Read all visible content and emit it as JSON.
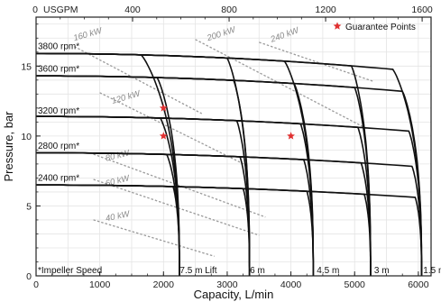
{
  "chart_data": {
    "type": "line",
    "title": "",
    "xlabel": "Capacity, L/min",
    "ylabel": "Pressure, bar",
    "x2label": "USGPM",
    "xlim": [
      0,
      6200
    ],
    "ylim": [
      0,
      18.5
    ],
    "x2lim": [
      0,
      1637
    ],
    "x_ticks": [
      0,
      1000,
      2000,
      3000,
      4000,
      5000,
      6000
    ],
    "y_ticks": [
      0,
      5,
      10,
      15
    ],
    "x2_ticks": [
      0,
      400,
      800,
      1200,
      1600
    ],
    "grid": true,
    "legend": {
      "position": "top-right",
      "label": "Guarantee Points",
      "color": "#e03030"
    },
    "note": "*Impeller Speed",
    "speed_labels": [
      {
        "label": "3800 rpm*",
        "y": 16.2
      },
      {
        "label": "3600 rpm*",
        "y": 14.6
      },
      {
        "label": "3200 rpm*",
        "y": 11.6
      },
      {
        "label": "2800 rpm*",
        "y": 9.1
      },
      {
        "label": "2400 rpm*",
        "y": 6.8
      }
    ],
    "lift_labels": [
      {
        "label": "7.5 m Lift",
        "x": 2200
      },
      {
        "label": "6 m",
        "x": 3300
      },
      {
        "label": "4.5 m",
        "x": 4350
      },
      {
        "label": "3 m",
        "x": 5250
      },
      {
        "label": "1.5 m",
        "x": 6020
      }
    ],
    "power_labels": [
      {
        "label": "160 kW",
        "x": 600,
        "y": 16.8,
        "angle": -16
      },
      {
        "label": "200 kW",
        "x": 2700,
        "y": 16.8,
        "angle": -18
      },
      {
        "label": "240 kW",
        "x": 3700,
        "y": 16.7,
        "angle": -20
      },
      {
        "label": "120 kW",
        "x": 1200,
        "y": 12.3,
        "angle": -16
      },
      {
        "label": "80 kW",
        "x": 1100,
        "y": 8.2,
        "angle": -14
      },
      {
        "label": "60 kW",
        "x": 1100,
        "y": 6.4,
        "angle": -14
      },
      {
        "label": "40 kW",
        "x": 1100,
        "y": 3.9,
        "angle": -12
      }
    ],
    "power_lines": [
      {
        "name": "160 kW",
        "points": [
          [
            600,
            16.4
          ],
          [
            2600,
            11.6
          ]
        ]
      },
      {
        "name": "200 kW",
        "points": [
          [
            2500,
            16.9
          ],
          [
            5200,
            10.5
          ]
        ]
      },
      {
        "name": "240 kW",
        "points": [
          [
            3500,
            16.7
          ],
          [
            5300,
            13.9
          ]
        ]
      },
      {
        "name": "120 kW",
        "points": [
          [
            1000,
            13.1
          ],
          [
            3300,
            7.9
          ]
        ]
      },
      {
        "name": "80 kW",
        "points": [
          [
            900,
            8.7
          ],
          [
            3600,
            4.2
          ]
        ]
      },
      {
        "name": "60 kW",
        "points": [
          [
            900,
            6.9
          ],
          [
            3500,
            2.9
          ]
        ]
      },
      {
        "name": "40 kW",
        "points": [
          [
            900,
            4.0
          ],
          [
            2800,
            1.4
          ]
        ]
      }
    ],
    "speeds": [
      {
        "rpm": 3800,
        "h0": 15.9,
        "drop": 1.3
      },
      {
        "rpm": 3600,
        "h0": 14.3,
        "drop": 1.2
      },
      {
        "rpm": 3200,
        "h0": 11.4,
        "drop": 1.1
      },
      {
        "rpm": 2800,
        "h0": 8.8,
        "drop": 1.0
      },
      {
        "rpm": 2400,
        "h0": 6.5,
        "drop": 0.9
      }
    ],
    "lifts": [
      {
        "label": "7.5 m",
        "q_max": 2250,
        "knee": [
          1650,
          1900,
          1950,
          2050,
          2150
        ]
      },
      {
        "label": "6 m",
        "q_max": 3350,
        "knee": [
          3000,
          3100,
          3150,
          3200,
          3250
        ]
      },
      {
        "label": "4.5 m",
        "q_max": 4350,
        "knee": [
          3900,
          4050,
          4150,
          4200,
          4250
        ]
      },
      {
        "label": "3 m",
        "q_max": 5250,
        "knee": [
          4950,
          5000,
          5050,
          5100,
          5150
        ]
      },
      {
        "label": "1.5 m",
        "q_max": 6050,
        "knee": [
          5600,
          5750,
          5850,
          5900,
          5950
        ]
      }
    ],
    "guarantee_points": [
      {
        "x": 2000,
        "y": 12.0
      },
      {
        "x": 2000,
        "y": 10.0
      },
      {
        "x": 4000,
        "y": 10.0
      }
    ]
  }
}
